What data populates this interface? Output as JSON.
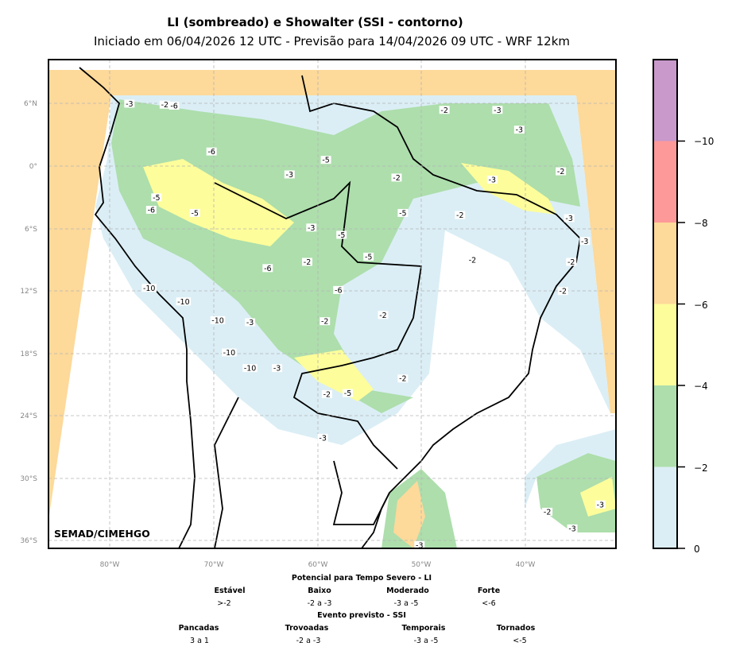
{
  "title": "LI (sombreado) e Showalter (SSI - contorno)",
  "subtitle": "Iniciado em 06/04/2026 12 UTC - Previsão para 14/04/2026 09 UTC - WRF 12km",
  "credit": "SEMAD/CIMEHGO",
  "lat_ticks": [
    "6°N",
    "0°",
    "6°S",
    "12°S",
    "18°S",
    "24°S",
    "30°S",
    "36°S"
  ],
  "lon_ticks": [
    "80°W",
    "70°W",
    "60°W",
    "50°W",
    "40°W"
  ],
  "colorbar": {
    "ticks": [
      "0",
      "−2",
      "−4",
      "−6",
      "−8",
      "−10"
    ],
    "levels": [
      0,
      -2,
      -4,
      -6,
      -8,
      -10,
      -12
    ],
    "colors": [
      "#dbeef5",
      "#addeac",
      "#fdfd9b",
      "#fdd99a",
      "#fd9999",
      "#c999cc"
    ]
  },
  "legend": {
    "li_title": "Potencial para Tempo Severo - LI",
    "li": [
      {
        "name": "Estável",
        "range": ">-2"
      },
      {
        "name": "Baixo",
        "range": "-2 a -3"
      },
      {
        "name": "Moderado",
        "range": "-3 a -5"
      },
      {
        "name": "Forte",
        "range": "<-6"
      }
    ],
    "ssi_title": "Evento previsto - SSI",
    "ssi": [
      {
        "name": "Pancadas",
        "range": "3 a 1"
      },
      {
        "name": "Trovoadas",
        "range": "-2 a -3"
      },
      {
        "name": "Temporais",
        "range": "-3 a -5"
      },
      {
        "name": "Tornados",
        "range": "<-5"
      }
    ]
  },
  "contour_labels": [
    {
      "t": "-3",
      "lon": -78.1,
      "lat": 6.0
    },
    {
      "t": "-2",
      "lon": -74.7,
      "lat": 5.9
    },
    {
      "t": "-6",
      "lon": -73.8,
      "lat": 5.8
    },
    {
      "t": "-2",
      "lon": -47.8,
      "lat": 5.4
    },
    {
      "t": "-3",
      "lon": -42.7,
      "lat": 5.4
    },
    {
      "t": "-3",
      "lon": -40.6,
      "lat": 3.5
    },
    {
      "t": "-2",
      "lon": -36.6,
      "lat": -0.5
    },
    {
      "t": "-6",
      "lon": -70.2,
      "lat": 1.4
    },
    {
      "t": "-3",
      "lon": -62.7,
      "lat": -0.8
    },
    {
      "t": "-5",
      "lon": -59.2,
      "lat": 0.6
    },
    {
      "t": "-2",
      "lon": -52.4,
      "lat": -1.1
    },
    {
      "t": "-3",
      "lon": -43.2,
      "lat": -1.3
    },
    {
      "t": "-3",
      "lon": -60.6,
      "lat": -5.9
    },
    {
      "t": "-5",
      "lon": -57.7,
      "lat": -6.6
    },
    {
      "t": "-5",
      "lon": -51.8,
      "lat": -4.5
    },
    {
      "t": "-2",
      "lon": -46.3,
      "lat": -4.7
    },
    {
      "t": "-3",
      "lon": -35.8,
      "lat": -5.0
    },
    {
      "t": "-3",
      "lon": -34.3,
      "lat": -7.2
    },
    {
      "t": "-2",
      "lon": -45.1,
      "lat": -9.0
    },
    {
      "t": "-2",
      "lon": -35.6,
      "lat": -9.2
    },
    {
      "t": "-2",
      "lon": -36.4,
      "lat": -12.0
    },
    {
      "t": "-10",
      "lon": -76.2,
      "lat": -11.7
    },
    {
      "t": "-10",
      "lon": -72.9,
      "lat": -13.0
    },
    {
      "t": "-10",
      "lon": -69.6,
      "lat": -14.8
    },
    {
      "t": "-10",
      "lon": -68.5,
      "lat": -17.9
    },
    {
      "t": "-10",
      "lon": -66.5,
      "lat": -19.4
    },
    {
      "t": "-3",
      "lon": -63.9,
      "lat": -19.4
    },
    {
      "t": "-2",
      "lon": -59.3,
      "lat": -14.9
    },
    {
      "t": "-2",
      "lon": -53.7,
      "lat": -14.3
    },
    {
      "t": "-5",
      "lon": -55.1,
      "lat": -8.7
    },
    {
      "t": "-2",
      "lon": -59.1,
      "lat": -21.9
    },
    {
      "t": "-5",
      "lon": -57.1,
      "lat": -21.8
    },
    {
      "t": "-2",
      "lon": -51.8,
      "lat": -20.4
    },
    {
      "t": "-3",
      "lon": -59.5,
      "lat": -26.1
    },
    {
      "t": "-3",
      "lon": -50.2,
      "lat": -36.4
    },
    {
      "t": "-2",
      "lon": -37.9,
      "lat": -33.2
    },
    {
      "t": "-3",
      "lon": -35.5,
      "lat": -34.8
    },
    {
      "t": "-3",
      "lon": -32.8,
      "lat": -32.5
    },
    {
      "t": "-5",
      "lon": -75.5,
      "lat": -3.0
    },
    {
      "t": "-6",
      "lon": -76.0,
      "lat": -4.2
    },
    {
      "t": "-6",
      "lon": -64.8,
      "lat": -9.8
    },
    {
      "t": "-3",
      "lon": -66.5,
      "lat": -15.0
    },
    {
      "t": "-5",
      "lon": -71.8,
      "lat": -4.5
    },
    {
      "t": "-2",
      "lon": -61.0,
      "lat": -9.2
    },
    {
      "t": "-6",
      "lon": -58.0,
      "lat": -11.9
    }
  ]
}
